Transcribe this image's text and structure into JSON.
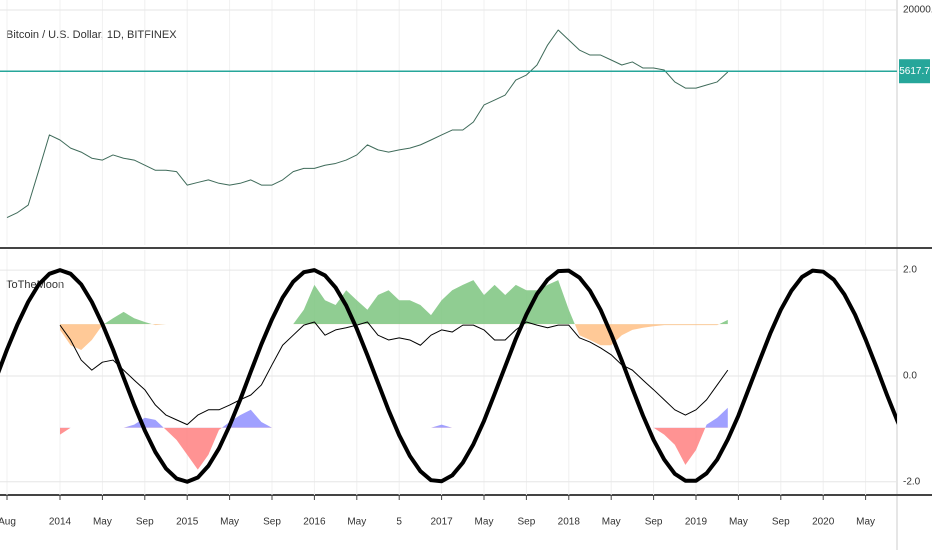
{
  "chart_data": [
    {
      "type": "line",
      "title": "Bitcoin / U.S. Dollar, 1D, BITFINEX",
      "log": true,
      "ylim": [
        153,
        24600
      ],
      "yticks": [
        {
          "value": 20000,
          "label": "20000.0"
        }
      ],
      "grid": true,
      "last_value": 5617.7,
      "last_value_color": "#26a69a",
      "series": [
        {
          "color": "#3f6b5a",
          "values": [
            null,
            270,
            300,
            350,
            720,
            1500,
            1350,
            1140,
            1050,
            925,
            890,
            990,
            925,
            890,
            800,
            720,
            720,
            700,
            530,
            560,
            590,
            550,
            530,
            550,
            590,
            530,
            530,
            590,
            700,
            750,
            750,
            800,
            830,
            890,
            990,
            1220,
            1100,
            1050,
            1100,
            1140,
            1220,
            1350,
            1500,
            1660,
            1660,
            1960,
            2790,
            3090,
            3430,
            4680,
            5190,
            6390,
            9670,
            13200,
            10730,
            8720,
            7860,
            7860,
            7090,
            6390,
            6810,
            6000,
            6000,
            5760,
            4500,
            3960,
            3960,
            4220,
            4500,
            5530,
            null,
            null,
            null,
            null,
            null,
            null,
            null,
            null,
            null,
            null,
            null,
            null,
            null,
            null,
            null,
            null,
            null
          ]
        }
      ]
    },
    {
      "type": "line",
      "title": "ToTheMoon",
      "ylim": [
        -2.25,
        2.38
      ],
      "grid": true,
      "yticks": [
        {
          "value": 2,
          "label": "2.0"
        },
        {
          "value": 0,
          "label": "0.0"
        },
        {
          "value": -2,
          "label": "-2.0"
        }
      ],
      "categories": [
        "2013-07",
        "2013-08",
        "2013-09",
        "2013-10",
        "2013-11",
        "2013-12",
        "2014-01",
        "2014-02",
        "2014-03",
        "2014-04",
        "2014-05",
        "2014-06",
        "2014-07",
        "2014-08",
        "2014-09",
        "2014-10",
        "2014-11",
        "2014-12",
        "2015-01",
        "2015-02",
        "2015-03",
        "2015-04",
        "2015-05",
        "2015-06",
        "2015-07",
        "2015-08",
        "2015-09",
        "2015-10",
        "2015-11",
        "2015-12",
        "2016-01",
        "2016-02",
        "2016-03",
        "2016-04",
        "2016-05",
        "2016-06",
        "2016-07",
        "2016-08",
        "2016-09",
        "2016-10",
        "2016-11",
        "2016-12",
        "2017-01",
        "2017-02",
        "2017-03",
        "2017-04",
        "2017-05",
        "2017-06",
        "2017-07",
        "2017-08",
        "2017-09",
        "2017-10",
        "2017-11",
        "2017-12",
        "2018-01",
        "2018-02",
        "2018-03",
        "2018-04",
        "2018-05",
        "2018-06",
        "2018-07",
        "2018-08",
        "2018-09",
        "2018-10",
        "2018-11",
        "2018-12",
        "2019-01",
        "2019-02",
        "2019-03",
        "2019-04",
        "2019-05",
        "2019-06",
        "2019-07",
        "2019-08",
        "2019-09",
        "2019-10",
        "2019-11",
        "2019-12",
        "2020-01",
        "2020-02",
        "2020-03",
        "2020-04",
        "2020-05",
        "2020-06",
        "2020-07",
        "2020-08",
        "2020-09"
      ],
      "xticks": [
        {
          "value": "2013-08",
          "label": "Aug"
        },
        {
          "value": "2014-01",
          "label": "2014"
        },
        {
          "value": "2014-05",
          "label": "May"
        },
        {
          "value": "2014-09",
          "label": "Sep"
        },
        {
          "value": "2015-01",
          "label": "2015"
        },
        {
          "value": "2015-05",
          "label": "May"
        },
        {
          "value": "2015-09",
          "label": "Sep"
        },
        {
          "value": "2016-01",
          "label": "2016"
        },
        {
          "value": "2016-05",
          "label": "May"
        },
        {
          "value": "2016-09",
          "label": "5"
        },
        {
          "value": "2017-01",
          "label": "2017"
        },
        {
          "value": "2017-05",
          "label": "May"
        },
        {
          "value": "2017-09",
          "label": "Sep"
        },
        {
          "value": "2018-01",
          "label": "2018"
        },
        {
          "value": "2018-05",
          "label": "May"
        },
        {
          "value": "2018-09",
          "label": "Sep"
        },
        {
          "value": "2019-01",
          "label": "2019"
        },
        {
          "value": "2019-05",
          "label": "May"
        },
        {
          "value": "2019-09",
          "label": "Sep"
        },
        {
          "value": "2020-01",
          "label": "2020"
        },
        {
          "value": "2020-05",
          "label": "May"
        }
      ],
      "series": [
        {
          "style": "area",
          "base": 0.98,
          "color_above": "#7cc47f",
          "color_below": "#ffc085",
          "values": [
            null,
            null,
            null,
            null,
            null,
            null,
            0.87,
            0.58,
            0.49,
            0.68,
            0.96,
            1.09,
            1.21,
            1.09,
            1.02,
            0.96,
            0.98,
            0.98,
            0.98,
            0.98,
            0.98,
            0.98,
            0.98,
            0.98,
            0.98,
            0.98,
            0.98,
            0.98,
            0.98,
            1.25,
            1.72,
            1.43,
            1.34,
            1.62,
            1.43,
            1.25,
            1.53,
            1.62,
            1.43,
            1.43,
            1.34,
            1.15,
            1.43,
            1.62,
            1.72,
            1.81,
            1.53,
            1.72,
            1.53,
            1.72,
            1.62,
            1.62,
            1.72,
            1.81,
            1.25,
            0.77,
            0.68,
            0.58,
            0.58,
            0.77,
            0.87,
            0.91,
            0.94,
            0.96,
            0.96,
            0.96,
            0.96,
            0.96,
            0.96,
            1.06,
            null,
            null,
            null,
            null,
            null,
            null,
            null,
            null,
            null,
            null,
            null,
            null,
            null,
            null,
            null,
            null,
            null
          ]
        },
        {
          "style": "area",
          "base": -0.98,
          "color_above": "#8f8fff",
          "color_below": "#ff8080",
          "values": [
            null,
            null,
            null,
            null,
            null,
            null,
            -1.11,
            -0.98,
            -0.98,
            -0.98,
            -0.98,
            -0.98,
            -0.98,
            -0.92,
            -0.79,
            -0.83,
            -1.02,
            -1.21,
            -1.49,
            -1.77,
            -1.49,
            -1.02,
            -0.87,
            -0.74,
            -0.64,
            -0.87,
            -0.98,
            -0.98,
            -0.98,
            -0.98,
            -0.98,
            -0.98,
            -0.98,
            -0.98,
            -0.98,
            -0.98,
            -0.98,
            -0.98,
            -0.98,
            -0.98,
            -0.98,
            -0.98,
            -0.92,
            -0.98,
            -0.98,
            -0.98,
            -0.98,
            -0.98,
            -0.98,
            -0.98,
            -0.98,
            -0.98,
            -0.98,
            -0.98,
            -0.98,
            -0.98,
            -0.98,
            -0.98,
            -0.98,
            -0.98,
            -0.98,
            -0.98,
            -0.98,
            -1.11,
            -1.3,
            -1.68,
            -1.4,
            -0.92,
            -0.79,
            -0.6,
            null,
            null,
            null,
            null,
            null,
            null,
            null,
            null,
            null,
            null,
            null,
            null,
            null,
            null,
            null,
            null,
            null
          ]
        },
        {
          "style": "line",
          "color": "#000000",
          "width": 1,
          "values": [
            null,
            null,
            null,
            null,
            null,
            null,
            0.96,
            0.68,
            0.3,
            0.11,
            0.26,
            0.3,
            0.11,
            -0.08,
            -0.26,
            -0.55,
            -0.74,
            -0.83,
            -0.92,
            -0.74,
            -0.64,
            -0.64,
            -0.55,
            -0.45,
            -0.36,
            -0.17,
            0.21,
            0.58,
            0.77,
            0.96,
            1.02,
            0.77,
            0.87,
            0.91,
            0.96,
            1.02,
            0.77,
            0.68,
            0.72,
            0.68,
            0.58,
            0.77,
            0.87,
            0.83,
            0.96,
            0.96,
            0.87,
            0.68,
            0.68,
            0.87,
            1.02,
            0.96,
            0.91,
            0.96,
            0.96,
            0.72,
            0.64,
            0.53,
            0.4,
            0.21,
            0.11,
            -0.08,
            -0.26,
            -0.45,
            -0.64,
            -0.74,
            -0.64,
            -0.45,
            -0.17,
            0.11,
            null,
            null,
            null,
            null,
            null,
            null,
            null,
            null,
            null,
            null,
            null,
            null,
            null,
            null,
            null,
            null,
            null
          ]
        },
        {
          "style": "line",
          "color": "#000000",
          "width": 4,
          "values": [
            -0.03,
            0.5,
            0.98,
            1.4,
            1.73,
            1.93,
            2.0,
            1.93,
            1.73,
            1.4,
            0.98,
            0.5,
            -0.03,
            -0.55,
            -1.03,
            -1.44,
            -1.75,
            -1.94,
            -2.0,
            -1.92,
            -1.7,
            -1.37,
            -0.94,
            -0.45,
            0.08,
            0.6,
            1.07,
            1.48,
            1.78,
            1.96,
            2.0,
            1.9,
            1.67,
            1.33,
            0.89,
            0.39,
            -0.13,
            -0.65,
            -1.12,
            -1.51,
            -1.8,
            -1.97,
            -1.99,
            -1.88,
            -1.64,
            -1.29,
            -0.85,
            -0.34,
            0.18,
            0.7,
            1.16,
            1.55,
            1.82,
            1.98,
            1.99,
            1.86,
            1.61,
            1.25,
            0.79,
            0.29,
            -0.24,
            -0.75,
            -1.21,
            -1.58,
            -1.85,
            -1.98,
            -1.98,
            -1.84,
            -1.58,
            -1.2,
            -0.75,
            -0.23,
            0.29,
            0.8,
            1.25,
            1.61,
            1.87,
            1.99,
            1.97,
            1.82,
            1.54,
            1.16,
            0.69,
            0.18,
            -0.35,
            -0.85,
            -1.29
          ]
        }
      ]
    }
  ]
}
